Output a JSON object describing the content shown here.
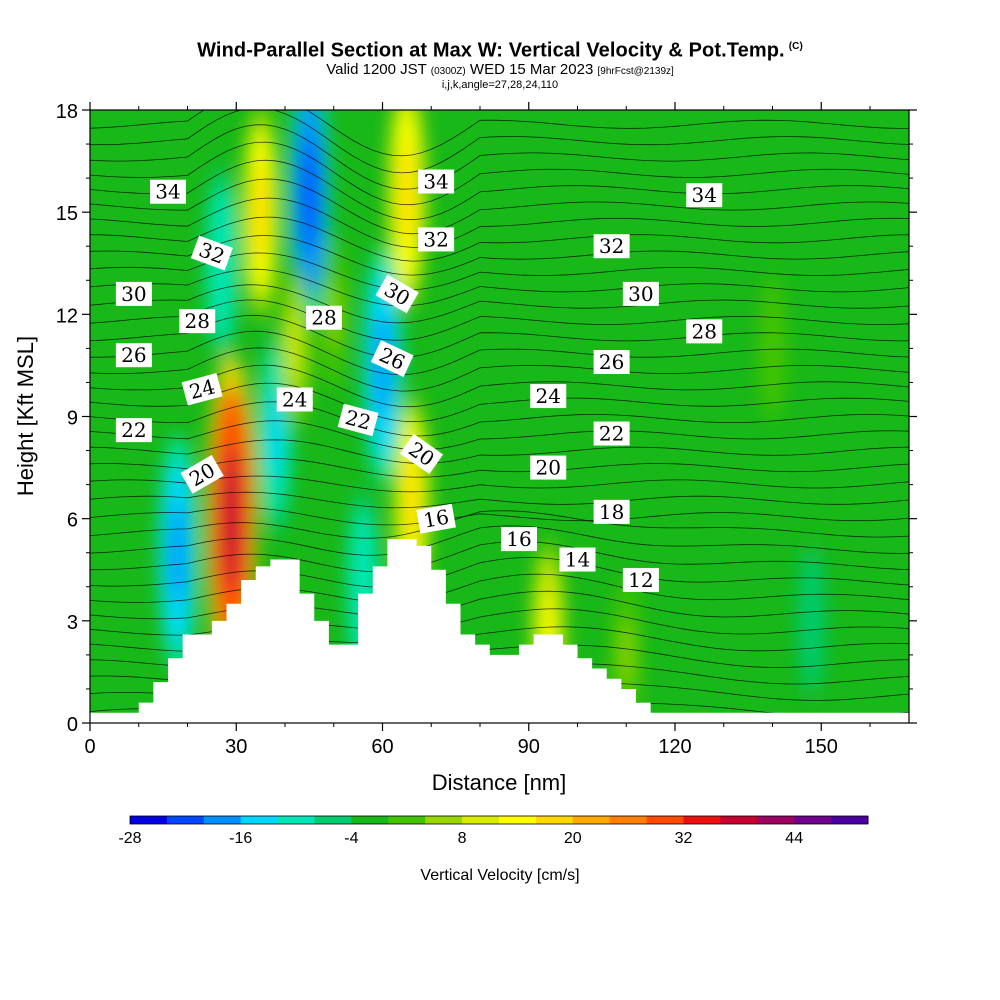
{
  "header": {
    "title": "Wind-Parallel Section at Max W: Vertical Velocity & Pot.Temp.",
    "copyright": "(C)",
    "valid_pre": "Valid 1200 JST",
    "valid_utc": "(0300Z)",
    "valid_date": "WED 15 Mar 2023",
    "valid_fcst": "[9hrFcst@2139z]",
    "params": "i,j,k,angle=27,28,24,110"
  },
  "chart_data": {
    "type": "heatmap",
    "xlabel": "Distance [nm]",
    "ylabel": "Height [Kft MSL]",
    "xlim": [
      0,
      168
    ],
    "ylim": [
      0,
      18
    ],
    "xticks": [
      0,
      30,
      60,
      90,
      120,
      150
    ],
    "yticks": [
      0,
      3,
      6,
      9,
      12,
      15,
      18
    ],
    "terrain": {
      "x": [
        0,
        10,
        10,
        13,
        13,
        16,
        16,
        19,
        19,
        22,
        22,
        25,
        25,
        28,
        28,
        31,
        31,
        34,
        34,
        37,
        37,
        40,
        40,
        43,
        43,
        46,
        46,
        49,
        49,
        52,
        52,
        55,
        55,
        58,
        58,
        61,
        61,
        64,
        64,
        67,
        67,
        70,
        70,
        73,
        73,
        76,
        76,
        79,
        79,
        82,
        82,
        85,
        85,
        88,
        88,
        91,
        91,
        94,
        94,
        97,
        97,
        100,
        100,
        103,
        103,
        106,
        106,
        109,
        109,
        112,
        112,
        115,
        115,
        118,
        118,
        121,
        121,
        168
      ],
      "y": [
        0.3,
        0.3,
        0.6,
        0.6,
        1.2,
        1.2,
        1.9,
        1.9,
        2.6,
        2.6,
        2.6,
        2.6,
        3.0,
        3.0,
        3.5,
        3.5,
        4.2,
        4.2,
        4.6,
        4.6,
        4.8,
        4.8,
        4.8,
        4.8,
        3.8,
        3.8,
        3.0,
        3.0,
        2.3,
        2.3,
        2.3,
        2.3,
        3.8,
        3.8,
        4.6,
        4.6,
        5.4,
        5.4,
        5.4,
        5.4,
        5.2,
        5.2,
        4.5,
        4.5,
        3.5,
        3.5,
        2.6,
        2.6,
        2.3,
        2.3,
        2.0,
        2.0,
        2.0,
        2.0,
        2.3,
        2.3,
        2.6,
        2.6,
        2.6,
        2.6,
        2.3,
        2.3,
        1.9,
        1.9,
        1.6,
        1.6,
        1.3,
        1.3,
        1.0,
        1.0,
        0.6,
        0.6,
        0.3,
        0.3,
        0.3,
        0.3,
        0.3,
        0.3
      ]
    },
    "vertical_velocity_features": [
      {
        "x": 29,
        "y": 6.0,
        "value": 38
      },
      {
        "x": 35,
        "y": 15.0,
        "value": 16
      },
      {
        "x": 45,
        "y": 15.5,
        "value": -24
      },
      {
        "x": 65,
        "y": 15.5,
        "value": 18
      },
      {
        "x": 66,
        "y": 6.5,
        "value": 16
      },
      {
        "x": 27,
        "y": 13.5,
        "value": -12
      },
      {
        "x": 18,
        "y": 5.0,
        "value": -20
      },
      {
        "x": 38,
        "y": 8.5,
        "value": -14
      },
      {
        "x": 60,
        "y": 10.5,
        "value": -20
      },
      {
        "x": 42,
        "y": 11.0,
        "value": 8
      },
      {
        "x": 50,
        "y": 12.0,
        "value": 4
      },
      {
        "x": 56,
        "y": 4.0,
        "value": -12
      },
      {
        "x": 94,
        "y": 2.5,
        "value": 12
      },
      {
        "x": 110,
        "y": 2.0,
        "value": 4
      },
      {
        "x": 148,
        "y": 3.0,
        "value": -8
      },
      {
        "x": 140,
        "y": 11.0,
        "value": 2
      }
    ],
    "isotherms": [
      {
        "label": "34",
        "lx": 16,
        "ly": 15.6,
        "angle": 0
      },
      {
        "label": "32",
        "lx": 25,
        "ly": 13.8,
        "angle": 20
      },
      {
        "label": "30",
        "lx": 9,
        "ly": 12.6,
        "angle": 0
      },
      {
        "label": "28",
        "lx": 22,
        "ly": 11.8,
        "angle": 0
      },
      {
        "label": "26",
        "lx": 9,
        "ly": 10.8,
        "angle": 0
      },
      {
        "label": "24",
        "lx": 23,
        "ly": 9.8,
        "angle": -15
      },
      {
        "label": "22",
        "lx": 9,
        "ly": 8.6,
        "angle": 0
      },
      {
        "label": "20",
        "lx": 23,
        "ly": 7.3,
        "angle": -30
      },
      {
        "label": "24",
        "lx": 42,
        "ly": 9.5,
        "angle": 0
      },
      {
        "label": "28",
        "lx": 48,
        "ly": 11.9,
        "angle": 0
      },
      {
        "label": "22",
        "lx": 55,
        "ly": 8.9,
        "angle": 15
      },
      {
        "label": "30",
        "lx": 63,
        "ly": 12.6,
        "angle": 30
      },
      {
        "label": "26",
        "lx": 62,
        "ly": 10.7,
        "angle": 25
      },
      {
        "label": "20",
        "lx": 68,
        "ly": 7.9,
        "angle": 35
      },
      {
        "label": "34",
        "lx": 71,
        "ly": 15.9,
        "angle": 0
      },
      {
        "label": "32",
        "lx": 71,
        "ly": 14.2,
        "angle": 0
      },
      {
        "label": "16",
        "lx": 71,
        "ly": 6.0,
        "angle": -10
      },
      {
        "label": "16",
        "lx": 88,
        "ly": 5.4,
        "angle": 0
      },
      {
        "label": "24",
        "lx": 94,
        "ly": 9.6,
        "angle": 0
      },
      {
        "label": "20",
        "lx": 94,
        "ly": 7.5,
        "angle": 0
      },
      {
        "label": "14",
        "lx": 100,
        "ly": 4.8,
        "angle": 0
      },
      {
        "label": "32",
        "lx": 107,
        "ly": 14.0,
        "angle": 0
      },
      {
        "label": "26",
        "lx": 107,
        "ly": 10.6,
        "angle": 0
      },
      {
        "label": "22",
        "lx": 107,
        "ly": 8.5,
        "angle": 0
      },
      {
        "label": "18",
        "lx": 107,
        "ly": 6.2,
        "angle": 0
      },
      {
        "label": "12",
        "lx": 113,
        "ly": 4.2,
        "angle": 0
      },
      {
        "label": "30",
        "lx": 113,
        "ly": 12.6,
        "angle": 0
      },
      {
        "label": "34",
        "lx": 126,
        "ly": 15.5,
        "angle": 0
      },
      {
        "label": "28",
        "lx": 126,
        "ly": 11.5,
        "angle": 0
      }
    ]
  },
  "colorbar": {
    "label": "Vertical Velocity [cm/s]",
    "min": -28,
    "max": 52,
    "step": 4,
    "ticks": [
      -28,
      -16,
      -4,
      8,
      20,
      32,
      44
    ],
    "colors": [
      "#0000e0",
      "#0047ff",
      "#0090ff",
      "#00d8ff",
      "#00e8b8",
      "#00cc70",
      "#18b818",
      "#44c400",
      "#98d800",
      "#d8ec00",
      "#ffff00",
      "#ffd800",
      "#ffaa00",
      "#ff8000",
      "#ff4a00",
      "#ee1010",
      "#c80030",
      "#9c0060",
      "#70008c",
      "#4a00a0"
    ]
  }
}
